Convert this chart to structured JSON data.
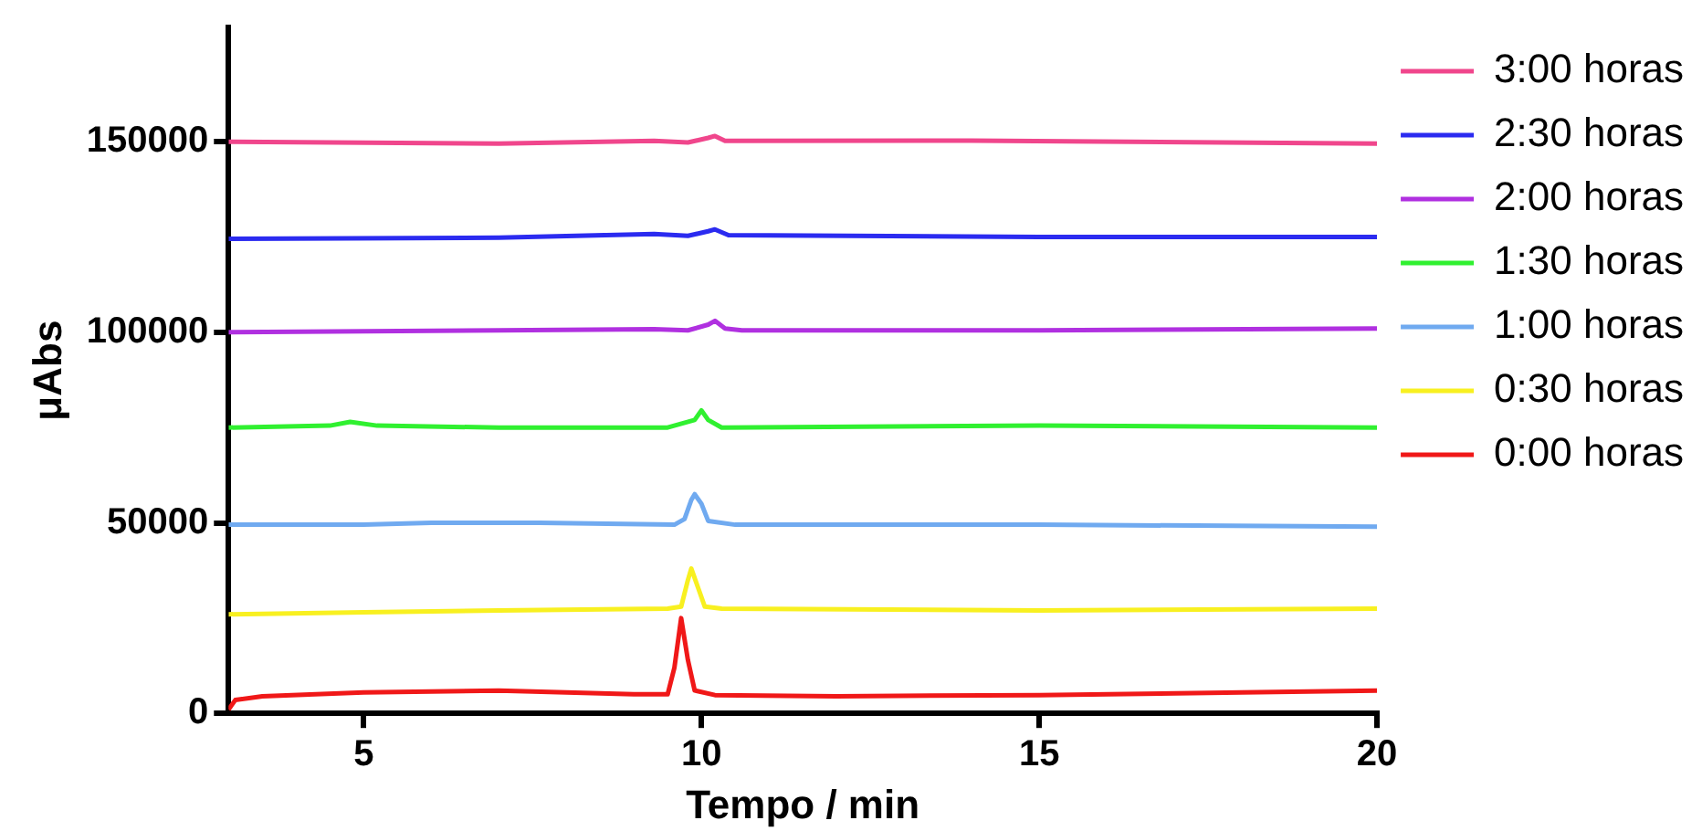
{
  "chart_data": {
    "type": "line",
    "xlabel": "Tempo / min",
    "ylabel": "μAbs",
    "xlim": [
      3,
      20
    ],
    "xticks": [
      5,
      10,
      15,
      20
    ],
    "ylim": [
      0,
      180000
    ],
    "yticks": [
      0,
      50000,
      100000,
      150000
    ],
    "grid": false,
    "legend": "right",
    "marker": "none",
    "line_style": "solid",
    "series": [
      {
        "name": "3:00 horas",
        "color": "#f0468c",
        "x": [
          3,
          7,
          9.3,
          9.8,
          10.1,
          10.2,
          10.35,
          14,
          20
        ],
        "values": [
          150000,
          149500,
          150200,
          149800,
          151000,
          151500,
          150200,
          150300,
          149500
        ]
      },
      {
        "name": "2:30 horas",
        "color": "#2b2bf0",
        "x": [
          3,
          7,
          9.3,
          9.8,
          10.1,
          10.2,
          10.4,
          15,
          20
        ],
        "values": [
          124500,
          124800,
          125800,
          125300,
          126500,
          127000,
          125500,
          125000,
          125000
        ]
      },
      {
        "name": "2:00 horas",
        "color": "#b030e0",
        "x": [
          3,
          7,
          9.3,
          9.8,
          10.1,
          10.2,
          10.35,
          10.6,
          15,
          20
        ],
        "values": [
          100000,
          100500,
          100800,
          100500,
          102000,
          103000,
          101000,
          100500,
          100500,
          101000
        ]
      },
      {
        "name": "1:30 horas",
        "color": "#30f030",
        "x": [
          3,
          4.5,
          4.8,
          5.2,
          7,
          9.5,
          9.9,
          10,
          10.1,
          10.3,
          15,
          20
        ],
        "values": [
          75000,
          75500,
          76500,
          75500,
          75000,
          75000,
          77000,
          79500,
          77000,
          75000,
          75500,
          75000
        ]
      },
      {
        "name": "1:00 horas",
        "color": "#70aaf0",
        "x": [
          3,
          5,
          6,
          7.6,
          9.6,
          9.75,
          9.85,
          9.9,
          10,
          10.1,
          10.5,
          15,
          20
        ],
        "values": [
          49500,
          49500,
          50000,
          50000,
          49500,
          51000,
          56000,
          57500,
          55000,
          50500,
          49500,
          49500,
          49000
        ]
      },
      {
        "name": "0:30 horas",
        "color": "#f8f020",
        "x": [
          3,
          5,
          7,
          9.5,
          9.7,
          9.8,
          9.85,
          9.95,
          10.05,
          10.3,
          15,
          20
        ],
        "values": [
          26000,
          26500,
          27000,
          27500,
          28000,
          35000,
          38000,
          33000,
          28000,
          27500,
          27000,
          27500
        ]
      },
      {
        "name": "0:00 horas",
        "color": "#f01818",
        "x": [
          3,
          3.1,
          3.5,
          5,
          7,
          9,
          9.5,
          9.6,
          9.7,
          9.8,
          9.9,
          10.2,
          12,
          15,
          18,
          20
        ],
        "values": [
          1000,
          3500,
          4500,
          5500,
          6000,
          5000,
          5000,
          12000,
          25000,
          14000,
          6000,
          4800,
          4500,
          4800,
          5500,
          6000
        ]
      }
    ]
  }
}
